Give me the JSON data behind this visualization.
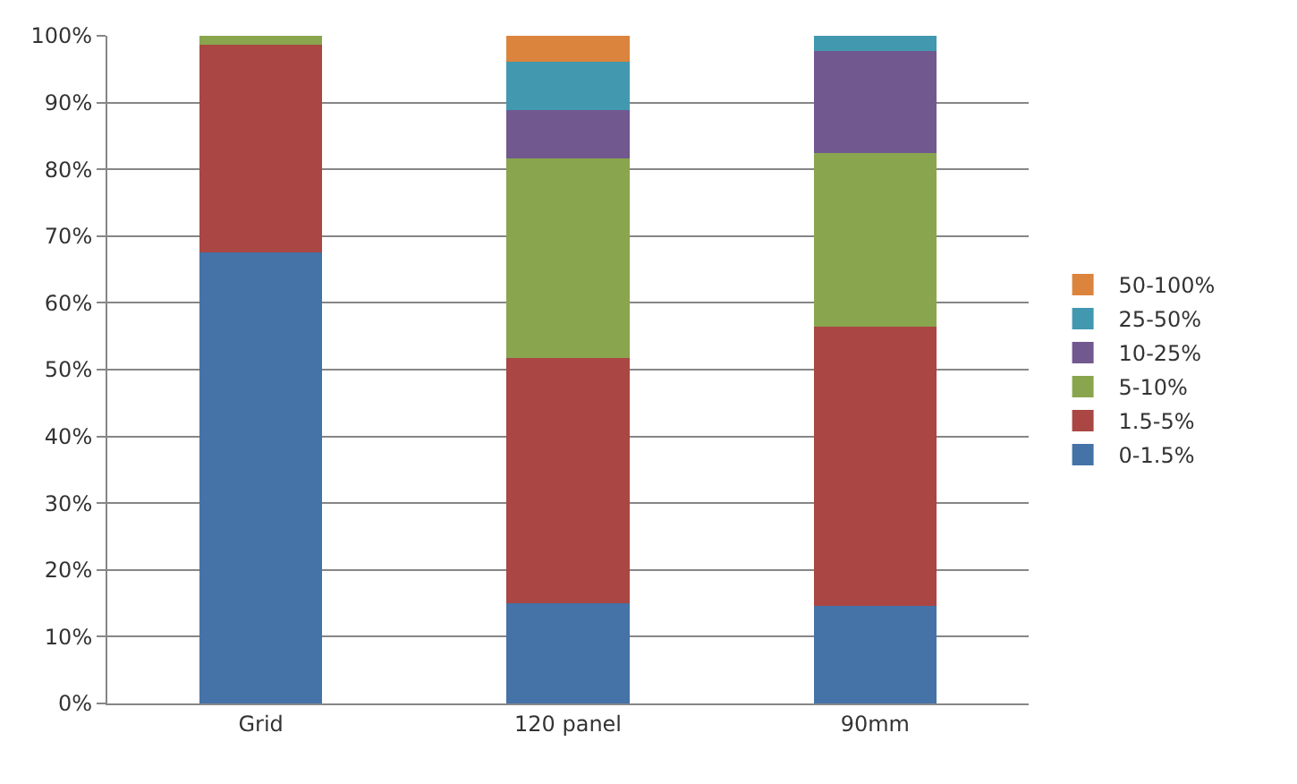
{
  "chart_data": {
    "type": "bar",
    "stacked": true,
    "categories": [
      "Grid",
      "120 panel",
      "90mm"
    ],
    "series": [
      {
        "name": "0-1.5%",
        "color": "#4572a7",
        "values": [
          67.5,
          15.0,
          14.6
        ]
      },
      {
        "name": "1.5-5%",
        "color": "#aa4643",
        "values": [
          31.1,
          36.7,
          41.9
        ]
      },
      {
        "name": "5-10%",
        "color": "#89a54e",
        "values": [
          1.4,
          29.9,
          26.0
        ]
      },
      {
        "name": "10-25%",
        "color": "#71588f",
        "values": [
          0,
          7.3,
          15.2
        ]
      },
      {
        "name": "25-50%",
        "color": "#4198af",
        "values": [
          0,
          7.2,
          2.3
        ]
      },
      {
        "name": "50-100%",
        "color": "#db843d",
        "values": [
          0,
          3.9,
          0
        ]
      }
    ],
    "ylim": [
      0,
      100
    ],
    "yticks": [
      {
        "value": 0,
        "label": "0%"
      },
      {
        "value": 10,
        "label": "10%"
      },
      {
        "value": 20,
        "label": "20%"
      },
      {
        "value": 30,
        "label": "30%"
      },
      {
        "value": 40,
        "label": "40%"
      },
      {
        "value": 50,
        "label": "50%"
      },
      {
        "value": 60,
        "label": "60%"
      },
      {
        "value": 70,
        "label": "70%"
      },
      {
        "value": 80,
        "label": "80%"
      },
      {
        "value": 90,
        "label": "90%"
      },
      {
        "value": 100,
        "label": "100%"
      }
    ],
    "grid": "y",
    "legend": "right"
  }
}
